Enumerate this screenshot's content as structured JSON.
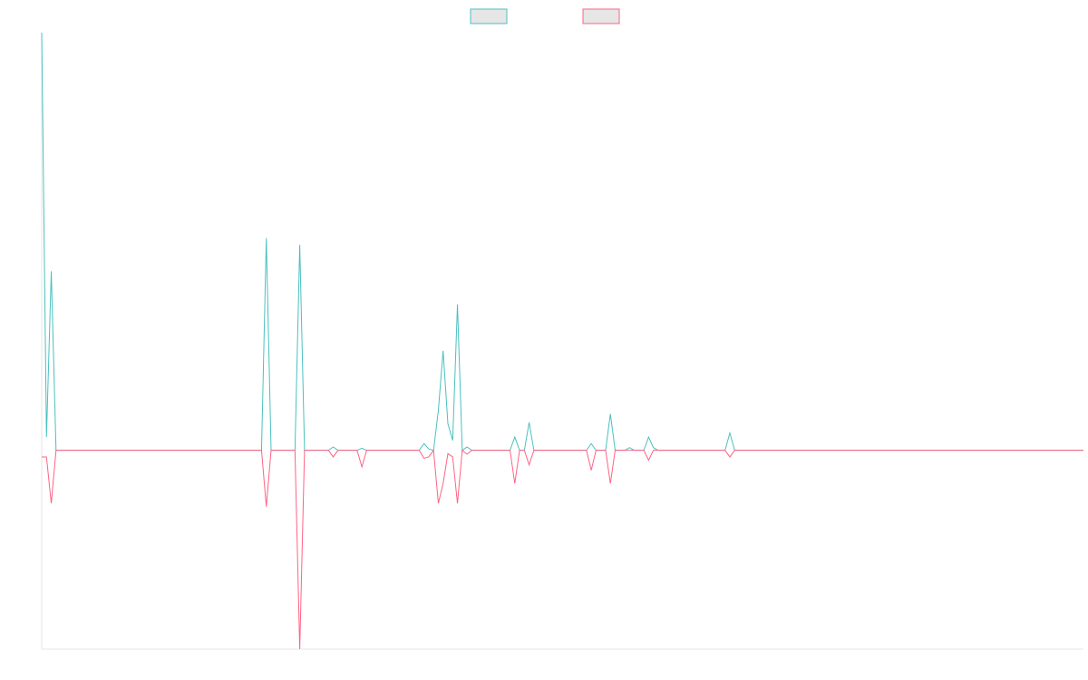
{
  "chart_data": {
    "type": "line",
    "title": "",
    "xlabel": "",
    "ylabel": "",
    "grid": false,
    "legend_position": "top-center",
    "ylim": [
      -30,
      63
    ],
    "x_count": 219,
    "series": [
      {
        "color": "#4bc0c0",
        "fill": "#e6e6e6",
        "points": [
          [
            0,
            63
          ],
          [
            1,
            2
          ],
          [
            2,
            27
          ],
          [
            3,
            0
          ],
          [
            46,
            0
          ],
          [
            47,
            32
          ],
          [
            48,
            0
          ],
          [
            53,
            0
          ],
          [
            54,
            31
          ],
          [
            55,
            0
          ],
          [
            60,
            0
          ],
          [
            61,
            0.5
          ],
          [
            62,
            0
          ],
          [
            66,
            0
          ],
          [
            67,
            0.3
          ],
          [
            68,
            0
          ],
          [
            79,
            0
          ],
          [
            80,
            1
          ],
          [
            81,
            0.2
          ],
          [
            82,
            0
          ],
          [
            83,
            6
          ],
          [
            84,
            15
          ],
          [
            85,
            4
          ],
          [
            86,
            1.5
          ],
          [
            87,
            22
          ],
          [
            88,
            0
          ],
          [
            89,
            0.5
          ],
          [
            90,
            0
          ],
          [
            98,
            0
          ],
          [
            99,
            2
          ],
          [
            100,
            0
          ],
          [
            101,
            0
          ],
          [
            102,
            4.2
          ],
          [
            103,
            0
          ],
          [
            114,
            0
          ],
          [
            115,
            1
          ],
          [
            116,
            0
          ],
          [
            118,
            0
          ],
          [
            119,
            5.5
          ],
          [
            120,
            0
          ],
          [
            122,
            0
          ],
          [
            123,
            0.4
          ],
          [
            124,
            0
          ],
          [
            126,
            0
          ],
          [
            127,
            2
          ],
          [
            128,
            0.4
          ],
          [
            129,
            0
          ],
          [
            143,
            0
          ],
          [
            144,
            2.6
          ],
          [
            145,
            0
          ],
          [
            218,
            0
          ]
        ]
      },
      {
        "color": "#ff6384",
        "fill": "#e6e6e6",
        "points": [
          [
            0,
            -1
          ],
          [
            1,
            -1
          ],
          [
            2,
            -8
          ],
          [
            3,
            0
          ],
          [
            46,
            0
          ],
          [
            47,
            -8.5
          ],
          [
            48,
            0
          ],
          [
            53,
            0
          ],
          [
            54,
            -30
          ],
          [
            55,
            0
          ],
          [
            60,
            0
          ],
          [
            61,
            -1
          ],
          [
            62,
            0
          ],
          [
            66,
            0
          ],
          [
            67,
            -2.5
          ],
          [
            68,
            0
          ],
          [
            79,
            0
          ],
          [
            80,
            -1.2
          ],
          [
            81,
            -1
          ],
          [
            82,
            0
          ],
          [
            83,
            -8
          ],
          [
            84,
            -5
          ],
          [
            85,
            -0.5
          ],
          [
            86,
            -1
          ],
          [
            87,
            -8
          ],
          [
            88,
            0
          ],
          [
            89,
            -0.6
          ],
          [
            90,
            0
          ],
          [
            98,
            0
          ],
          [
            99,
            -5
          ],
          [
            100,
            0
          ],
          [
            101,
            0
          ],
          [
            102,
            -2.2
          ],
          [
            103,
            0
          ],
          [
            114,
            0
          ],
          [
            115,
            -3
          ],
          [
            116,
            0
          ],
          [
            118,
            0
          ],
          [
            119,
            -5
          ],
          [
            120,
            0
          ],
          [
            122,
            0
          ],
          [
            123,
            0
          ],
          [
            124,
            0
          ],
          [
            126,
            0
          ],
          [
            127,
            -1.5
          ],
          [
            128,
            0
          ],
          [
            129,
            0
          ],
          [
            143,
            0
          ],
          [
            144,
            -1
          ],
          [
            145,
            0
          ],
          [
            218,
            0
          ]
        ]
      }
    ]
  }
}
